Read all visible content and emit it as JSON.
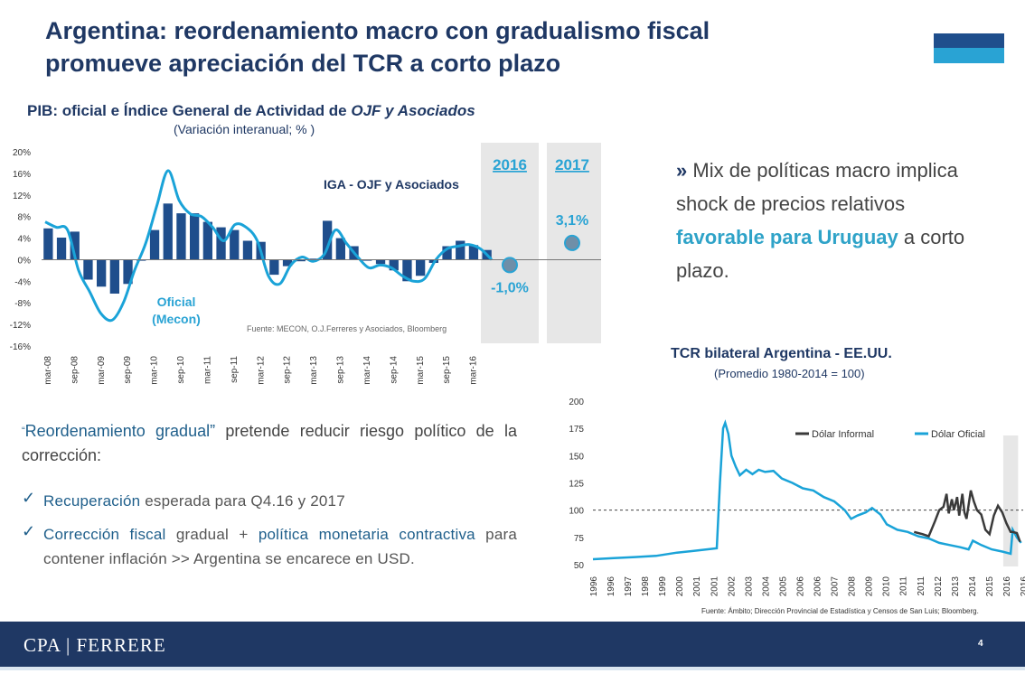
{
  "slide": {
    "title_line1": "Argentina: reordenamiento macro con gradualismo fiscal",
    "title_line2": "promueve apreciación del TCR a corto plazo",
    "page_number": "4",
    "brand": "CPA | FERRERE",
    "colors": {
      "navy": "#1f3864",
      "light_blue": "#29a3d4",
      "bar_blue": "#1f4e8c",
      "gray_band": "#e7e7e7"
    }
  },
  "right_bullet": {
    "arrow": "»",
    "text_a": "Mix de políticas macro implica shock de precios relativos ",
    "text_highlight": "favorable para Uruguay",
    "text_b": " a corto plazo."
  },
  "lower_text": {
    "open_quote": "“",
    "highlight": "Reordenamiento gradual”",
    "rest": " pretende reducir riesgo político de la corrección:",
    "check1_hl": "Recuperación",
    "check1_rest": " esperada para Q4.16 y 2017",
    "check2_hl1": "Corrección fiscal",
    "check2_mid": " gradual + ",
    "check2_hl2": "política monetaria contractiva",
    "check2_rest": " para contener inflación >> Argentina se encarece en USD."
  },
  "chart_data": [
    {
      "type": "bar",
      "title_main": "PIB: oficial e Índice General de Actividad de ",
      "title_italic": "OJF y Asociados",
      "subtitle": "(Variación interanual; % )",
      "ylim": [
        -16,
        20
      ],
      "yticks": [
        "20%",
        "16%",
        "12%",
        "8%",
        "4%",
        "0%",
        "-4%",
        "-8%",
        "-12%",
        "-16%"
      ],
      "x_labels": [
        "mar-08",
        "sep-08",
        "mar-09",
        "sep-09",
        "mar-10",
        "sep-10",
        "mar-11",
        "sep-11",
        "mar-12",
        "sep-12",
        "mar-13",
        "sep-13",
        "mar-14",
        "sep-14",
        "mar-15",
        "sep-15",
        "mar-16"
      ],
      "series": [
        {
          "name": "Oficial (Mecon)",
          "name_line1": "Oficial",
          "name_line2": "(Mecon)",
          "kind": "bar",
          "values": [
            5.8,
            4.1,
            5.2,
            -3.7,
            -5.0,
            -6.3,
            -4.5,
            -0.2,
            5.5,
            10.4,
            8.6,
            8.6,
            7.0,
            6.0,
            5.5,
            3.5,
            3.3,
            -2.8,
            -1.2,
            -0.3,
            0.2,
            7.2,
            4.0,
            2.5,
            -0.2,
            -0.8,
            -2.0,
            -4.0,
            -3.0,
            -0.6,
            2.5,
            3.5,
            2.7,
            1.8
          ]
        },
        {
          "name": "IGA - OJF y Asociados",
          "kind": "line",
          "values": [
            7.0,
            6.0,
            5.5,
            -2.0,
            -6.0,
            -10.0,
            -11.2,
            -8.0,
            -2.0,
            3.0,
            10.0,
            16.5,
            11.0,
            8.5,
            8.0,
            6.0,
            3.5,
            6.5,
            6.0,
            3.5,
            -3.0,
            -4.5,
            -1.0,
            0.5,
            -0.3,
            1.0,
            5.5,
            3.0,
            0.5,
            -1.5,
            -1.0,
            -1.5,
            -3.0,
            -4.0,
            -3.5,
            0.0,
            2.0,
            2.5,
            2.8,
            2.0,
            0.0
          ]
        }
      ],
      "forecast": [
        {
          "year": "2016",
          "value": -1.0,
          "label": "-1,0%"
        },
        {
          "year": "2017",
          "value": 3.1,
          "label": "3,1%"
        }
      ],
      "source": "Fuente:  MECON, O.J.Ferreres y Asociados, Bloomberg"
    },
    {
      "type": "line",
      "title": "TCR bilateral Argentina - EE.UU.",
      "subtitle": "(Promedio 1980-2014 = 100)",
      "ylim": [
        50,
        200
      ],
      "yticks": [
        200,
        175,
        150,
        125,
        100,
        75,
        50
      ],
      "reference_line": 100,
      "x_labels": [
        "1996",
        "1996",
        "1997",
        "1998",
        "1999",
        "2000",
        "2001",
        "2001",
        "2002",
        "2003",
        "2004",
        "2005",
        "2006",
        "2006",
        "2007",
        "2008",
        "2009",
        "2010",
        "2011",
        "2011",
        "2012",
        "2013",
        "2014",
        "2015",
        "2016",
        "2016"
      ],
      "series": [
        {
          "name": "Dólar Informal",
          "color": "#3a3a3a",
          "points": [
            [
              2011.3,
              80
            ],
            [
              2011.7,
              78
            ],
            [
              2012.0,
              76
            ],
            [
              2012.3,
              90
            ],
            [
              2012.5,
              100
            ],
            [
              2012.7,
              103
            ],
            [
              2012.85,
              115
            ],
            [
              2012.95,
              97
            ],
            [
              2013.1,
              110
            ],
            [
              2013.2,
              100
            ],
            [
              2013.35,
              112
            ],
            [
              2013.45,
              95
            ],
            [
              2013.6,
              115
            ],
            [
              2013.7,
              98
            ],
            [
              2013.8,
              92
            ],
            [
              2014.0,
              118
            ],
            [
              2014.15,
              108
            ],
            [
              2014.3,
              100
            ],
            [
              2014.5,
              96
            ],
            [
              2014.7,
              82
            ],
            [
              2014.9,
              78
            ],
            [
              2015.1,
              95
            ],
            [
              2015.3,
              104
            ],
            [
              2015.5,
              98
            ],
            [
              2015.7,
              88
            ],
            [
              2015.9,
              80
            ],
            [
              2016.0,
              80
            ],
            [
              2016.2,
              79
            ],
            [
              2016.35,
              71
            ]
          ]
        },
        {
          "name": "Dólar Oficial",
          "color": "#1aa3d8",
          "points": [
            [
              1996.0,
              55
            ],
            [
              1997.0,
              56
            ],
            [
              1998.0,
              57
            ],
            [
              1999.0,
              58
            ],
            [
              2000.0,
              61
            ],
            [
              2001.0,
              63
            ],
            [
              2001.9,
              65
            ],
            [
              2002.05,
              125
            ],
            [
              2002.2,
              175
            ],
            [
              2002.3,
              180
            ],
            [
              2002.45,
              170
            ],
            [
              2002.6,
              150
            ],
            [
              2002.8,
              140
            ],
            [
              2003.0,
              132
            ],
            [
              2003.3,
              137
            ],
            [
              2003.6,
              133
            ],
            [
              2003.9,
              137
            ],
            [
              2004.2,
              135
            ],
            [
              2004.6,
              136
            ],
            [
              2005.0,
              129
            ],
            [
              2005.5,
              125
            ],
            [
              2006.0,
              120
            ],
            [
              2006.5,
              118
            ],
            [
              2007.0,
              112
            ],
            [
              2007.5,
              108
            ],
            [
              2008.0,
              100
            ],
            [
              2008.3,
              92
            ],
            [
              2008.6,
              95
            ],
            [
              2009.0,
              98
            ],
            [
              2009.3,
              102
            ],
            [
              2009.7,
              96
            ],
            [
              2010.0,
              87
            ],
            [
              2010.5,
              82
            ],
            [
              2011.0,
              80
            ],
            [
              2011.5,
              76
            ],
            [
              2012.0,
              74
            ],
            [
              2012.5,
              70
            ],
            [
              2013.0,
              68
            ],
            [
              2013.5,
              66
            ],
            [
              2013.9,
              64
            ],
            [
              2014.1,
              72
            ],
            [
              2014.5,
              68
            ],
            [
              2015.0,
              64
            ],
            [
              2015.5,
              62
            ],
            [
              2015.9,
              60
            ],
            [
              2016.0,
              82
            ],
            [
              2016.2,
              75
            ],
            [
              2016.4,
              70
            ]
          ]
        }
      ],
      "highlight_band_years": [
        2015.55,
        2016.0
      ],
      "legend_position": "top-right",
      "source": "Fuente: Ámbito; Dirección Provincial de Estadística y Censos de San Luis; Bloomberg."
    }
  ]
}
